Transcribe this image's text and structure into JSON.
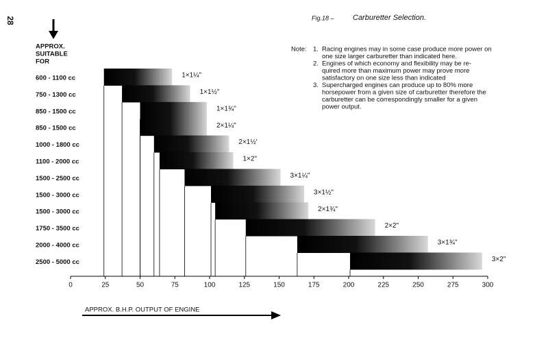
{
  "chart_data": {
    "type": "range_bar",
    "page_number": "28",
    "figure_label": "Fig.18 –",
    "title": "Carburetter Selection.",
    "y_axis_title": [
      "APPROX.",
      "SUITABLE",
      "FOR"
    ],
    "x_axis_title": "APPROX. B.H.P. OUTPUT OF ENGINE",
    "note_label": "Note:",
    "notes": [
      {
        "number": "1.",
        "lines": [
          "Racing engines may in some case produce more power on",
          "one size larger carburetter than indicated here."
        ]
      },
      {
        "number": "2.",
        "lines": [
          "Engines of which economy and flexibility may be re-",
          "quired more than maximum power may prove more",
          "satisfactory on one size less than indicated"
        ]
      },
      {
        "number": "3.",
        "lines": [
          "Supercharged engines can produce up to 80% more",
          "horsepower from a given size of carburetter therefore the",
          "carburetter can be correspondingly smaller for a given",
          "power output."
        ]
      }
    ],
    "categories": [
      "600 - 1100 cc",
      "750 - 1300 cc",
      "850 - 1500 cc",
      "850 - 1500 cc",
      "1000 - 1800 cc",
      "1100 - 2000 cc",
      "1500 - 2500 cc",
      "1500 - 3000 cc",
      "1500 - 3000 cc",
      "1750 - 3500 cc",
      "2000 - 4000 cc",
      "2500 - 5000 cc"
    ],
    "bar_labels": [
      "1×1¼\"",
      "1×1½\"",
      "1×1¾\"",
      "2×1¼\"",
      "2×1½'",
      "1×2\"",
      "3×1¼\"",
      "3×1½\"",
      "2×1¾\"",
      "2×2\"",
      "3×1¾\"",
      "3×2\""
    ],
    "ranges": [
      [
        24,
        73
      ],
      [
        37,
        86
      ],
      [
        50,
        98
      ],
      [
        50,
        98
      ],
      [
        60,
        114
      ],
      [
        64,
        117
      ],
      [
        82,
        151
      ],
      [
        101,
        168
      ],
      [
        104,
        171
      ],
      [
        126,
        219
      ],
      [
        163,
        257
      ],
      [
        201,
        296
      ]
    ],
    "xlim": [
      0,
      300
    ],
    "xticks": [
      0,
      25,
      50,
      75,
      100,
      125,
      150,
      175,
      200,
      225,
      250,
      275,
      300
    ]
  }
}
